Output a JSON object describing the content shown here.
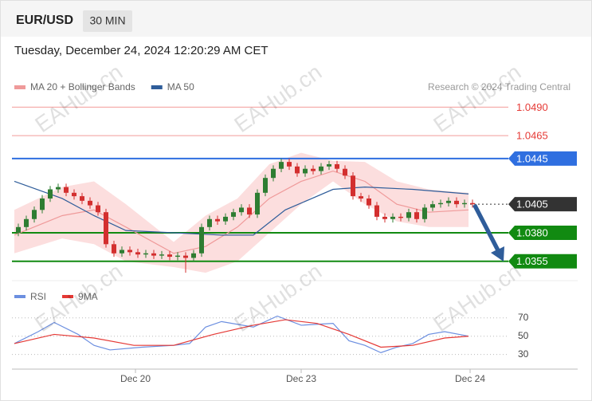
{
  "header": {
    "symbol": "EUR/USD",
    "interval": "30 MIN"
  },
  "timestamp": "Tuesday, December 24, 2024 12:20:29 AM CET",
  "watermark": "EAHub.cn",
  "credit": "Research © 2024 Trading Central",
  "chart_data": [
    {
      "type": "candlestick",
      "legend": [
        {
          "name": "MA 20 + Bollinger Bands",
          "color": "#ef9a9a"
        },
        {
          "name": "MA 50",
          "color": "#2f5d9a"
        }
      ],
      "xlim": [
        0,
        58
      ],
      "ylim": [
        1.0343,
        1.05
      ],
      "xticks": [
        {
          "value": 15.2,
          "label": "Dec 20"
        },
        {
          "value": 36,
          "label": "Dec 23"
        },
        {
          "value": 57.2,
          "label": "Dec 24"
        }
      ],
      "up_color": "#2e7d32",
      "down_color": "#d32f2f",
      "open": [
        1.038,
        1.0385,
        1.0392,
        1.04,
        1.041,
        1.0418,
        1.042,
        1.0415,
        1.0412,
        1.0408,
        1.0404,
        1.0398,
        1.037,
        1.0362,
        1.0365,
        1.0363,
        1.0361,
        1.0362,
        1.036,
        1.0361,
        1.0359,
        1.036,
        1.0358,
        1.0362,
        1.0385,
        1.0392,
        1.039,
        1.0394,
        1.0398,
        1.0402,
        1.0396,
        1.0415,
        1.0428,
        1.0436,
        1.0442,
        1.0438,
        1.0432,
        1.0436,
        1.0434,
        1.0438,
        1.044,
        1.0436,
        1.043,
        1.0412,
        1.041,
        1.0404,
        1.0394,
        1.0392,
        1.0394,
        1.0393,
        1.0398,
        1.0392,
        1.0402,
        1.0405,
        1.0406,
        1.0408,
        1.0405,
        1.0406
      ],
      "high": [
        1.0388,
        1.0395,
        1.0403,
        1.0413,
        1.0421,
        1.0423,
        1.0423,
        1.0418,
        1.0415,
        1.0411,
        1.0407,
        1.0401,
        1.0373,
        1.0368,
        1.0368,
        1.0366,
        1.0365,
        1.0365,
        1.0364,
        1.0364,
        1.0363,
        1.0363,
        1.0365,
        1.0388,
        1.0395,
        1.0395,
        1.0397,
        1.0401,
        1.0405,
        1.0405,
        1.0418,
        1.0431,
        1.0439,
        1.0445,
        1.0445,
        1.0441,
        1.0439,
        1.0439,
        1.0441,
        1.0443,
        1.0443,
        1.0439,
        1.0433,
        1.0415,
        1.0413,
        1.0407,
        1.0397,
        1.0397,
        1.0397,
        1.0401,
        1.0401,
        1.0405,
        1.0408,
        1.0409,
        1.0411,
        1.0411,
        1.0409,
        1.0409
      ],
      "low": [
        1.0377,
        1.0382,
        1.0389,
        1.0397,
        1.0407,
        1.0415,
        1.0412,
        1.0409,
        1.0405,
        1.0401,
        1.0395,
        1.0367,
        1.0359,
        1.0359,
        1.036,
        1.0358,
        1.0358,
        1.0357,
        1.0357,
        1.0356,
        1.0356,
        1.0345,
        1.0355,
        1.0359,
        1.0382,
        1.0387,
        1.0387,
        1.0391,
        1.0395,
        1.0393,
        1.0393,
        1.0412,
        1.0425,
        1.0433,
        1.0435,
        1.0429,
        1.0429,
        1.0431,
        1.0431,
        1.0435,
        1.0433,
        1.0427,
        1.0409,
        1.0407,
        1.0401,
        1.0391,
        1.0389,
        1.0389,
        1.039,
        1.039,
        1.0389,
        1.0389,
        1.0399,
        1.0402,
        1.0403,
        1.0402,
        1.0402,
        1.0402
      ],
      "close": [
        1.0385,
        1.0392,
        1.04,
        1.041,
        1.0418,
        1.042,
        1.0415,
        1.0412,
        1.0408,
        1.0404,
        1.0398,
        1.037,
        1.0362,
        1.0365,
        1.0363,
        1.0361,
        1.0362,
        1.036,
        1.0361,
        1.0359,
        1.036,
        1.0358,
        1.0362,
        1.0385,
        1.0392,
        1.039,
        1.0394,
        1.0398,
        1.0402,
        1.0396,
        1.0415,
        1.0428,
        1.0436,
        1.0442,
        1.0438,
        1.0432,
        1.0436,
        1.0434,
        1.0438,
        1.044,
        1.0436,
        1.043,
        1.0412,
        1.041,
        1.0404,
        1.0394,
        1.0392,
        1.0394,
        1.0393,
        1.0398,
        1.0392,
        1.0402,
        1.0405,
        1.0406,
        1.0408,
        1.0405,
        1.0406,
        1.0405
      ],
      "bands": {
        "color": "#fcdede",
        "x": [
          0,
          6,
          10,
          14,
          20,
          24,
          28,
          32,
          36,
          40,
          44,
          48,
          52,
          57
        ],
        "upper": [
          1.04,
          1.042,
          1.0425,
          1.0405,
          1.0372,
          1.0395,
          1.041,
          1.044,
          1.045,
          1.0443,
          1.0442,
          1.0425,
          1.0418,
          1.0415
        ],
        "lower": [
          1.0362,
          1.0375,
          1.037,
          1.0355,
          1.035,
          1.0345,
          1.0355,
          1.038,
          1.0405,
          1.0425,
          1.0405,
          1.039,
          1.0385,
          1.0385
        ]
      },
      "lines": [
        {
          "x": [
            0,
            6,
            10,
            14,
            20,
            24,
            28,
            32,
            36,
            40,
            44,
            48,
            52,
            57
          ],
          "values": [
            1.0378,
            1.0395,
            1.04,
            1.0385,
            1.0362,
            1.0368,
            1.0385,
            1.041,
            1.0425,
            1.0434,
            1.0425,
            1.0405,
            1.0398,
            1.04
          ]
        },
        {
          "x": [
            0,
            6,
            10,
            14,
            20,
            26,
            30,
            34,
            40,
            44,
            50,
            57
          ],
          "values": [
            1.0425,
            1.041,
            1.0395,
            1.0382,
            1.038,
            1.0378,
            1.0378,
            1.04,
            1.0418,
            1.042,
            1.0418,
            1.0414
          ]
        }
      ],
      "levels": [
        {
          "value": 1.049,
          "label": "1.0490",
          "color": "#e53935",
          "boxed": false
        },
        {
          "value": 1.0465,
          "label": "1.0465",
          "color": "#e53935",
          "boxed": false
        },
        {
          "value": 1.0445,
          "label": "1.0445",
          "color": "#2f6fe0",
          "boxed": true
        },
        {
          "value": 1.0405,
          "label": "1.0405",
          "color": "#333333",
          "boxed": true
        },
        {
          "value": 1.038,
          "label": "1.0380",
          "color": "#118a11",
          "boxed": true
        },
        {
          "value": 1.0355,
          "label": "1.0355",
          "color": "#118a11",
          "boxed": true
        }
      ]
    },
    {
      "type": "line",
      "xlim": [
        0,
        58
      ],
      "ylim": [
        21,
        82
      ],
      "yticks": [
        70,
        50,
        30
      ],
      "series": [
        {
          "name": "RSI",
          "color": "#6c8fe0",
          "x": [
            0,
            3,
            5,
            8,
            10,
            12,
            16,
            20,
            22,
            24,
            26,
            30,
            33,
            36,
            40,
            42,
            44,
            46,
            48,
            50,
            52,
            54,
            57
          ],
          "values": [
            42,
            55,
            65,
            52,
            40,
            35,
            38,
            40,
            42,
            60,
            66,
            60,
            72,
            62,
            64,
            45,
            40,
            32,
            38,
            42,
            52,
            55,
            50
          ]
        },
        {
          "name": "9MA",
          "color": "#e53935",
          "x": [
            0,
            5,
            10,
            15,
            20,
            25,
            30,
            34,
            38,
            42,
            46,
            50,
            54,
            57
          ],
          "values": [
            42,
            52,
            48,
            40,
            40,
            52,
            62,
            68,
            64,
            52,
            38,
            40,
            48,
            50
          ]
        }
      ]
    }
  ]
}
